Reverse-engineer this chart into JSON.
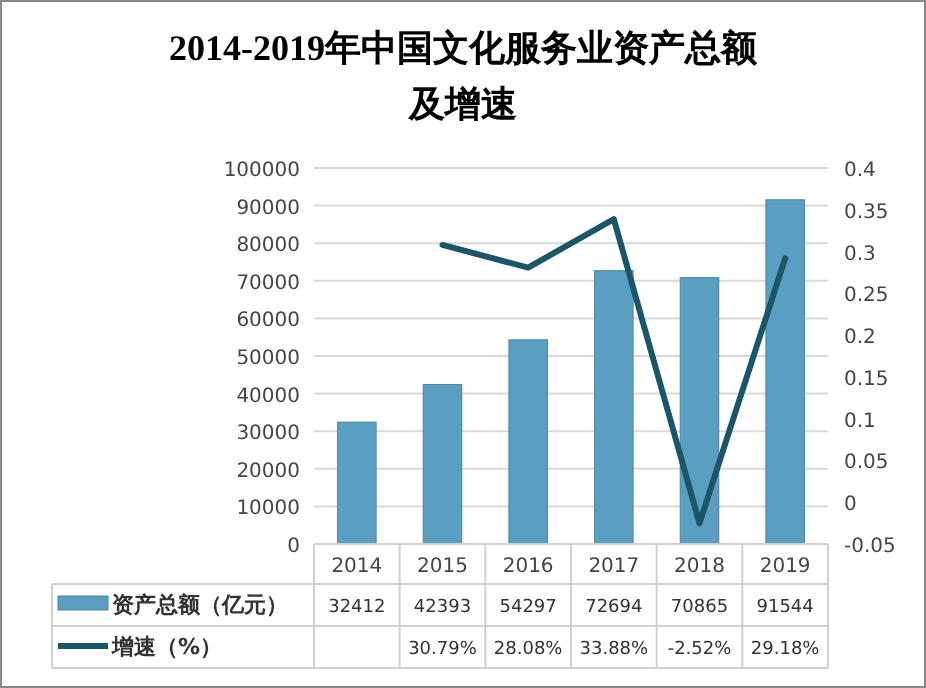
{
  "chart_data": {
    "type": "bar",
    "title": "2014-2019年中国文化服务业资产总额及增速",
    "categories": [
      "2014",
      "2015",
      "2016",
      "2017",
      "2018",
      "2019"
    ],
    "series": [
      {
        "name": "资产总额（亿元）",
        "color": "#5a9fc2",
        "values": [
          32412,
          42393,
          54297,
          72694,
          70865,
          91544
        ]
      },
      {
        "name": "增速（%）",
        "type": "line",
        "axis": "y2",
        "color": "#1b5568",
        "values": [
          null,
          0.3079,
          0.2808,
          0.3388,
          -0.0252,
          0.2918
        ],
        "value_labels": [
          null,
          "30.79%",
          "28.08%",
          "33.88%",
          "-2.52%",
          "29.18%"
        ]
      }
    ],
    "ylim": [
      0,
      100000
    ],
    "yticks": [
      0,
      10000,
      20000,
      30000,
      40000,
      50000,
      60000,
      70000,
      80000,
      90000,
      100000
    ],
    "y2lim": [
      -0.05,
      0.4
    ],
    "y2ticks": [
      -0.05,
      0,
      0.05,
      0.1,
      0.15,
      0.2,
      0.25,
      0.3,
      0.35,
      0.4
    ],
    "grid": "y",
    "legend": "bottom",
    "data_labels": true
  }
}
